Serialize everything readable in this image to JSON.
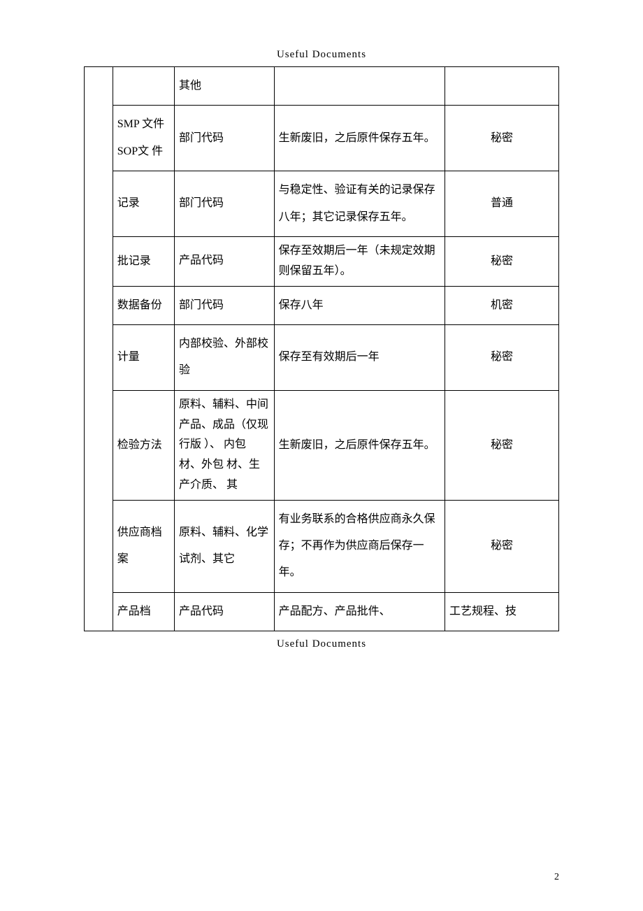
{
  "header": "Useful Documents",
  "footer": "Useful Documents",
  "page_number": "2",
  "table": {
    "rows": [
      {
        "c1": "",
        "c2": "其他",
        "c3": "",
        "c4": ""
      },
      {
        "c1": "SMP 文件SOP文 件",
        "c2": "部门代码",
        "c3": "生新废旧，之后原件保存五年。",
        "c4": "秘密"
      },
      {
        "c1": "记录",
        "c2": "部门代码",
        "c3": "与稳定性、验证有关的记录保存八年；其它记录保存五年。",
        "c4": "普通"
      },
      {
        "c1": "批记录",
        "c2": "产品代码",
        "c3": "保存至效期后一年（未规定效期则保留五年）。",
        "c4": "秘密"
      },
      {
        "c1": "数据备份",
        "c2": "部门代码",
        "c3": "保存八年",
        "c4": "机密"
      },
      {
        "c1": "计量",
        "c2": "内部校验、外部校验",
        "c3": "保存至有效期后一年",
        "c4": "秘密"
      },
      {
        "c1": "检验方法",
        "c2": "原料、辅料、中间产品、成品（仅现行版 ）、 内包 材、外包 材、生产介质、 其",
        "c3": "生新废旧，之后原件保存五年。",
        "c4": "秘密"
      },
      {
        "c1": "供应商档案",
        "c2": "原料、辅料、化学试剂、其它",
        "c3": "有业务联系的合格供应商永久保存；不再作为供应商后保存一年。",
        "c4": "秘密"
      },
      {
        "c1": "产品档",
        "c2": "产品代码",
        "c3": "产品配方、产品批件、",
        "c4": "工艺规程、技"
      }
    ]
  }
}
